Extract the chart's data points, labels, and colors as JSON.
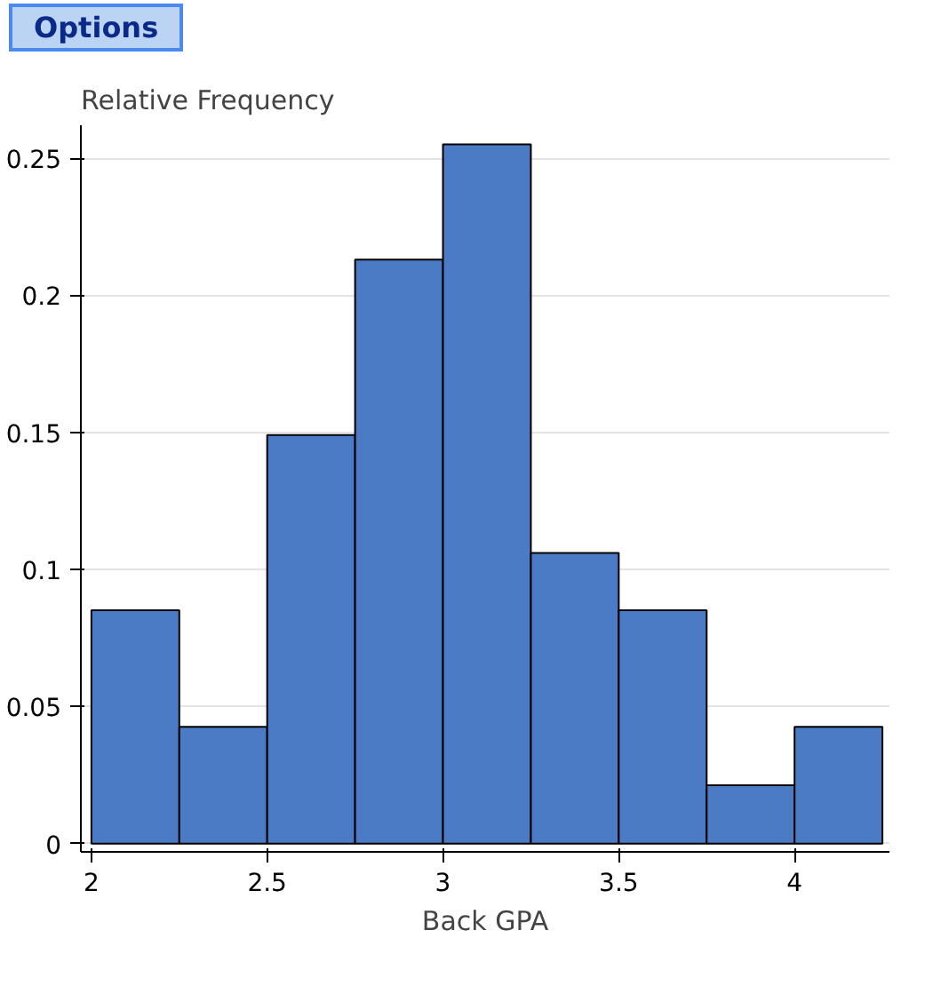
{
  "chart_data": {
    "type": "histogram",
    "xlabel": "Back GPA",
    "ylabel": "Relative Frequency",
    "annotations": [
      "Options"
    ],
    "bins": [
      2,
      2.25,
      2.5,
      2.75,
      3,
      3.25,
      3.5,
      3.75,
      4,
      4.25
    ],
    "values": [
      0.0851,
      0.0426,
      0.149,
      0.213,
      0.255,
      0.106,
      0.0851,
      0.0213,
      0.0426
    ],
    "color": "#4a7bc4",
    "xlim": [
      1.97,
      4.27
    ],
    "xticks": [
      2,
      2.5,
      3,
      3.5,
      4
    ],
    "ylim": [
      -0.003,
      0.262
    ],
    "yticks": [
      0,
      0.05,
      0.1,
      0.15,
      0.2,
      0.25
    ],
    "grid": "y"
  }
}
